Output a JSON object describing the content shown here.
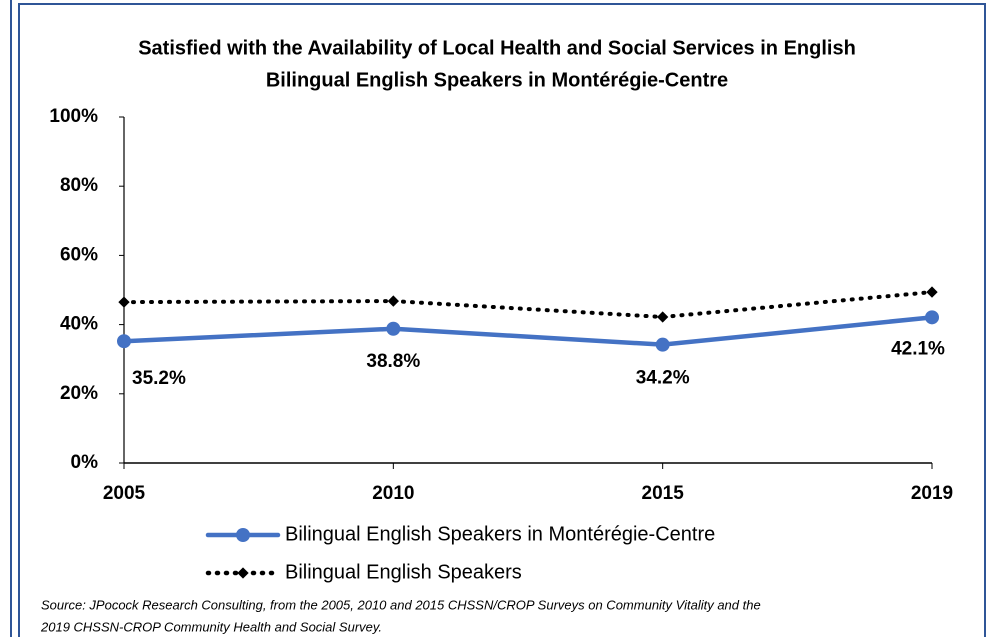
{
  "chart_data": {
    "type": "line",
    "title": "Satisfied with the Availability of Local Health and Social Services in English",
    "subtitle": "Bilingual English Speakers in Montérégie-Centre",
    "categories": [
      "2005",
      "2010",
      "2015",
      "2019"
    ],
    "series": [
      {
        "name": "Bilingual English Speakers in Montérégie-Centre",
        "color": "#4472c4",
        "values": [
          35.2,
          38.8,
          34.2,
          42.1
        ],
        "value_labels": [
          "35.2%",
          "38.8%",
          "34.2%",
          "42.1%"
        ]
      },
      {
        "name": "Bilingual English Speakers",
        "color": "#000000",
        "values": [
          46.5,
          46.8,
          42.2,
          49.4
        ]
      }
    ],
    "ylim": [
      0,
      100
    ],
    "yticks": [
      {
        "value": 0,
        "label": "0%"
      },
      {
        "value": 20,
        "label": "20%"
      },
      {
        "value": 40,
        "label": "40%"
      },
      {
        "value": 60,
        "label": "60%"
      },
      {
        "value": 80,
        "label": "80%"
      },
      {
        "value": 100,
        "label": "100%"
      }
    ],
    "grid": false,
    "legend": "bottom",
    "source": [
      "Source: JPocock Research Consulting, from the 2005, 2010  and 2015  CHSSN/CROP Surveys on Community Vitality and the",
      "2019  CHSSN-CROP Community Health and Social Survey."
    ]
  }
}
